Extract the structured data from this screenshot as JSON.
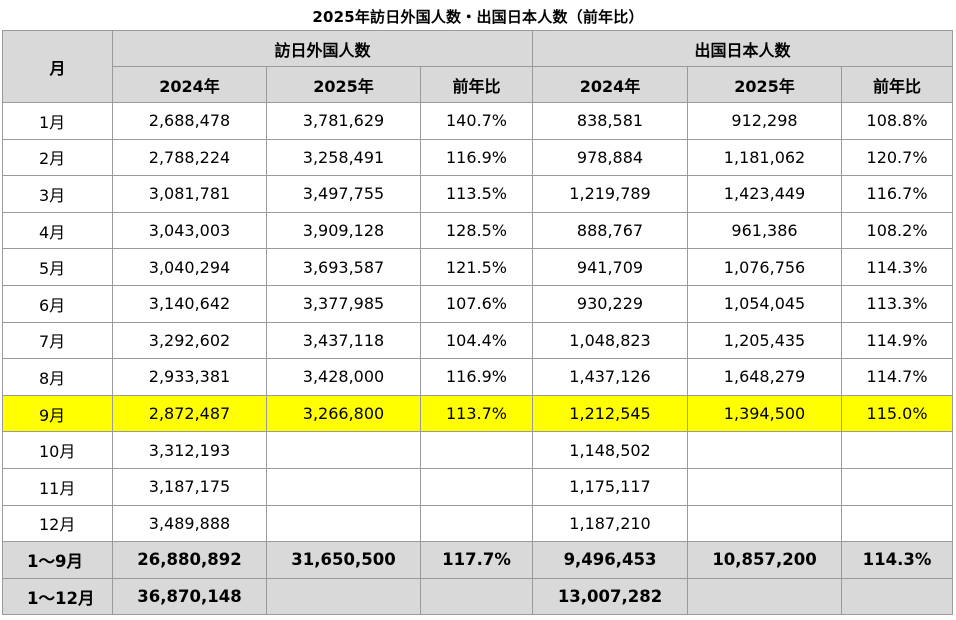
{
  "title": "2025年訪日外国人数・出国日本人数（前年比）",
  "headers": {
    "month": "月",
    "group_inbound": "訪日外国人数",
    "group_outbound": "出国日本人数",
    "y2024": "2024年",
    "y2025": "2025年",
    "ratio": "前年比"
  },
  "rows": [
    {
      "month": "1月",
      "in2024": "2,688,478",
      "in2025": "3,781,629",
      "inRatio": "140.7%",
      "out2024": "838,581",
      "out2025": "912,298",
      "outRatio": "108.8%"
    },
    {
      "month": "2月",
      "in2024": "2,788,224",
      "in2025": "3,258,491",
      "inRatio": "116.9%",
      "out2024": "978,884",
      "out2025": "1,181,062",
      "outRatio": "120.7%"
    },
    {
      "month": "3月",
      "in2024": "3,081,781",
      "in2025": "3,497,755",
      "inRatio": "113.5%",
      "out2024": "1,219,789",
      "out2025": "1,423,449",
      "outRatio": "116.7%"
    },
    {
      "month": "4月",
      "in2024": "3,043,003",
      "in2025": "3,909,128",
      "inRatio": "128.5%",
      "out2024": "888,767",
      "out2025": "961,386",
      "outRatio": "108.2%"
    },
    {
      "month": "5月",
      "in2024": "3,040,294",
      "in2025": "3,693,587",
      "inRatio": "121.5%",
      "out2024": "941,709",
      "out2025": "1,076,756",
      "outRatio": "114.3%"
    },
    {
      "month": "6月",
      "in2024": "3,140,642",
      "in2025": "3,377,985",
      "inRatio": "107.6%",
      "out2024": "930,229",
      "out2025": "1,054,045",
      "outRatio": "113.3%"
    },
    {
      "month": "7月",
      "in2024": "3,292,602",
      "in2025": "3,437,118",
      "inRatio": "104.4%",
      "out2024": "1,048,823",
      "out2025": "1,205,435",
      "outRatio": "114.9%"
    },
    {
      "month": "8月",
      "in2024": "2,933,381",
      "in2025": "3,428,000",
      "inRatio": "116.9%",
      "out2024": "1,437,126",
      "out2025": "1,648,279",
      "outRatio": "114.7%"
    },
    {
      "month": "9月",
      "in2024": "2,872,487",
      "in2025": "3,266,800",
      "inRatio": "113.7%",
      "out2024": "1,212,545",
      "out2025": "1,394,500",
      "outRatio": "115.0%"
    },
    {
      "month": "10月",
      "in2024": "3,312,193",
      "in2025": "",
      "inRatio": "",
      "out2024": "1,148,502",
      "out2025": "",
      "outRatio": ""
    },
    {
      "month": "11月",
      "in2024": "3,187,175",
      "in2025": "",
      "inRatio": "",
      "out2024": "1,175,117",
      "out2025": "",
      "outRatio": ""
    },
    {
      "month": "12月",
      "in2024": "3,489,888",
      "in2025": "",
      "inRatio": "",
      "out2024": "1,187,210",
      "out2025": "",
      "outRatio": ""
    }
  ],
  "highlight_color": "#ffff00",
  "header_bg": "#d9d9d9",
  "totals": [
    {
      "month": "1～9月",
      "in2024": "26,880,892",
      "in2025": "31,650,500",
      "inRatio": "117.7%",
      "out2024": "9,496,453",
      "out2025": "10,857,200",
      "outRatio": "114.3%"
    },
    {
      "month": "1～12月",
      "in2024": "36,870,148",
      "in2025": "",
      "inRatio": "",
      "out2024": "13,007,282",
      "out2025": "",
      "outRatio": ""
    }
  ]
}
